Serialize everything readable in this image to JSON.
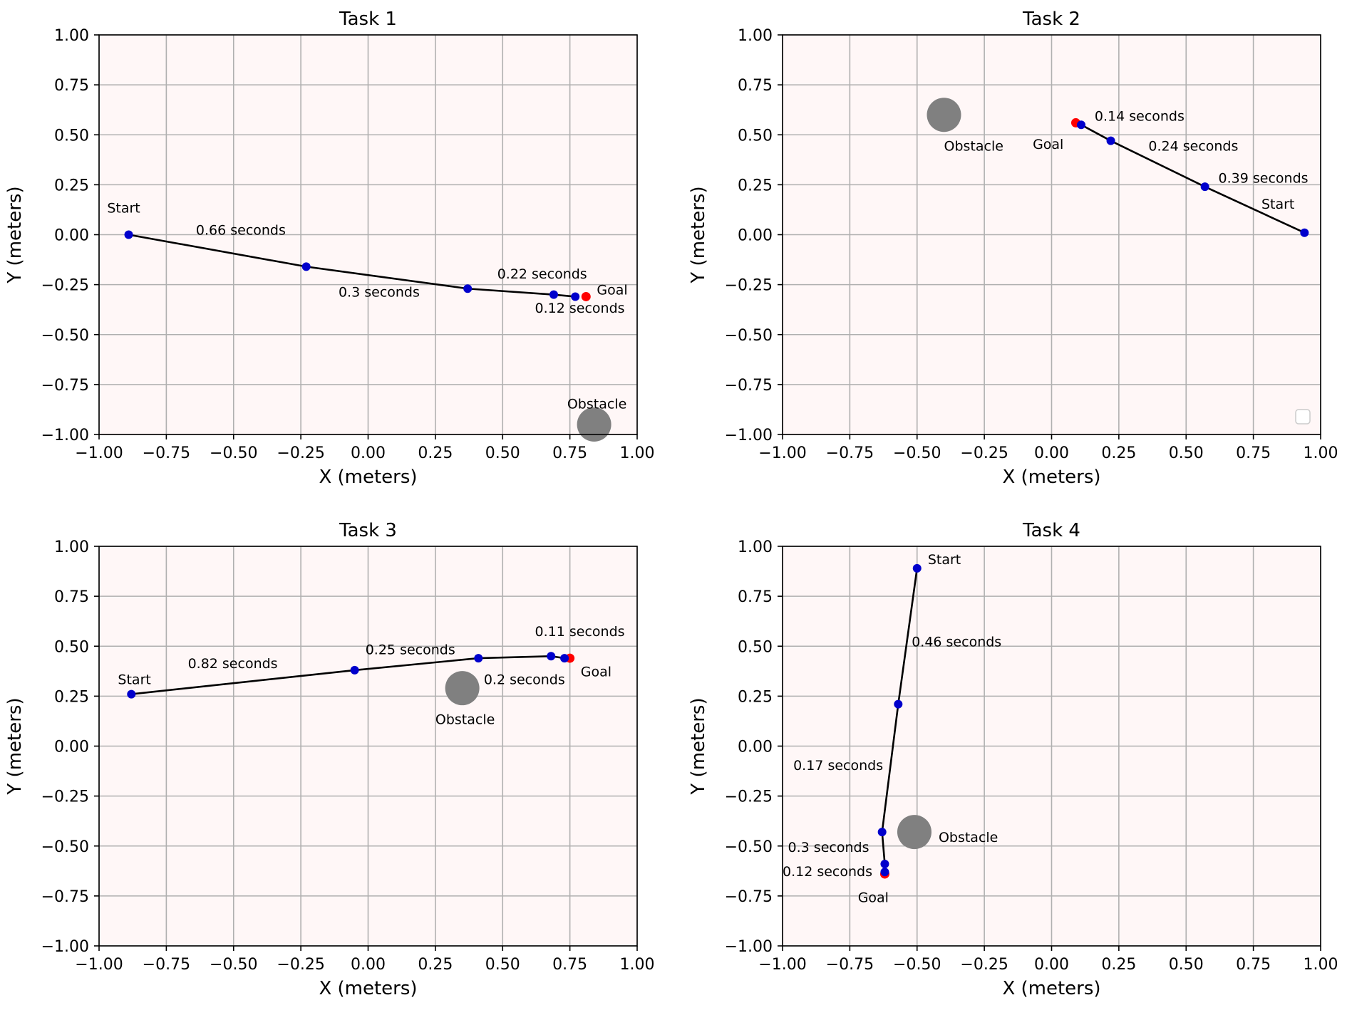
{
  "chart_data": [
    {
      "type": "scatter",
      "title": "Task 1",
      "xlabel": "X (meters)",
      "ylabel": "Y (meters)",
      "xlim": [
        -1.0,
        1.0
      ],
      "ylim": [
        -1.0,
        1.0
      ],
      "xticks": [
        "−1.00",
        "−0.75",
        "−0.50",
        "−0.25",
        "0.00",
        "0.25",
        "0.50",
        "0.75",
        "1.00"
      ],
      "yticks": [
        "−1.00",
        "−0.75",
        "−0.50",
        "−0.25",
        "0.00",
        "0.25",
        "0.50",
        "0.75",
        "1.00"
      ],
      "grid": true,
      "path": [
        [
          -0.89,
          0.0
        ],
        [
          -0.23,
          -0.16
        ],
        [
          0.37,
          -0.27
        ],
        [
          0.69,
          -0.3
        ],
        [
          0.77,
          -0.31
        ]
      ],
      "goal": [
        0.81,
        -0.31
      ],
      "obstacle": [
        0.84,
        -0.95
      ],
      "annotations": [
        {
          "text": "Start",
          "x": -0.97,
          "y": 0.11
        },
        {
          "text": "0.66 seconds",
          "x": -0.64,
          "y": 0.0
        },
        {
          "text": "0.3 seconds",
          "x": -0.11,
          "y": -0.31
        },
        {
          "text": "0.22 seconds",
          "x": 0.48,
          "y": -0.22
        },
        {
          "text": "Goal",
          "x": 0.85,
          "y": -0.3
        },
        {
          "text": "0.12 seconds",
          "x": 0.62,
          "y": -0.39
        },
        {
          "text": "Obstacle",
          "x": 0.74,
          "y": -0.87
        }
      ]
    },
    {
      "type": "scatter",
      "title": "Task 2",
      "xlabel": "X (meters)",
      "ylabel": "Y (meters)",
      "xlim": [
        -1.0,
        1.0
      ],
      "ylim": [
        -1.0,
        1.0
      ],
      "xticks": [
        "−1.00",
        "−0.75",
        "−0.50",
        "−0.25",
        "0.00",
        "0.25",
        "0.50",
        "0.75",
        "1.00"
      ],
      "yticks": [
        "−1.00",
        "−0.75",
        "−0.50",
        "−0.25",
        "0.00",
        "0.25",
        "0.50",
        "0.75",
        "1.00"
      ],
      "grid": true,
      "path": [
        [
          0.94,
          0.01
        ],
        [
          0.57,
          0.24
        ],
        [
          0.22,
          0.47
        ],
        [
          0.11,
          0.55
        ]
      ],
      "goal": [
        0.09,
        0.56
      ],
      "obstacle": [
        -0.4,
        0.6
      ],
      "legend_placement": "lower-right",
      "annotations": [
        {
          "text": "0.14 seconds",
          "x": 0.16,
          "y": 0.57
        },
        {
          "text": "Obstacle",
          "x": -0.4,
          "y": 0.42
        },
        {
          "text": "Goal",
          "x": -0.07,
          "y": 0.43
        },
        {
          "text": "0.24 seconds",
          "x": 0.36,
          "y": 0.42
        },
        {
          "text": "0.39 seconds",
          "x": 0.62,
          "y": 0.26
        },
        {
          "text": "Start",
          "x": 0.78,
          "y": 0.13
        }
      ]
    },
    {
      "type": "scatter",
      "title": "Task 3",
      "xlabel": "X (meters)",
      "ylabel": "Y (meters)",
      "xlim": [
        -1.0,
        1.0
      ],
      "ylim": [
        -1.0,
        1.0
      ],
      "xticks": [
        "−1.00",
        "−0.75",
        "−0.50",
        "−0.25",
        "0.00",
        "0.25",
        "0.50",
        "0.75",
        "1.00"
      ],
      "yticks": [
        "−1.00",
        "−0.75",
        "−0.50",
        "−0.25",
        "0.00",
        "0.25",
        "0.50",
        "0.75",
        "1.00"
      ],
      "grid": true,
      "path": [
        [
          -0.88,
          0.26
        ],
        [
          -0.05,
          0.38
        ],
        [
          0.41,
          0.44
        ],
        [
          0.68,
          0.45
        ],
        [
          0.73,
          0.44
        ]
      ],
      "goal": [
        0.75,
        0.44
      ],
      "obstacle": [
        0.35,
        0.29
      ],
      "annotations": [
        {
          "text": "Start",
          "x": -0.93,
          "y": 0.31
        },
        {
          "text": "0.82 seconds",
          "x": -0.67,
          "y": 0.39
        },
        {
          "text": "0.25 seconds",
          "x": -0.01,
          "y": 0.46
        },
        {
          "text": "0.11 seconds",
          "x": 0.62,
          "y": 0.55
        },
        {
          "text": "0.2 seconds",
          "x": 0.43,
          "y": 0.31
        },
        {
          "text": "Goal",
          "x": 0.79,
          "y": 0.35
        },
        {
          "text": "Obstacle",
          "x": 0.25,
          "y": 0.11
        }
      ]
    },
    {
      "type": "scatter",
      "title": "Task 4",
      "xlabel": "X (meters)",
      "ylabel": "Y (meters)",
      "xlim": [
        -1.0,
        1.0
      ],
      "ylim": [
        -1.0,
        1.0
      ],
      "xticks": [
        "−1.00",
        "−0.75",
        "−0.50",
        "−0.25",
        "0.00",
        "0.25",
        "0.50",
        "0.75",
        "1.00"
      ],
      "yticks": [
        "−1.00",
        "−0.75",
        "−0.50",
        "−0.25",
        "0.00",
        "0.25",
        "0.50",
        "0.75",
        "1.00"
      ],
      "grid": true,
      "path": [
        [
          -0.5,
          0.89
        ],
        [
          -0.57,
          0.21
        ],
        [
          -0.63,
          -0.43
        ],
        [
          -0.62,
          -0.59
        ],
        [
          -0.62,
          -0.63
        ]
      ],
      "goal": [
        -0.62,
        -0.64
      ],
      "obstacle": [
        -0.51,
        -0.43
      ],
      "annotations": [
        {
          "text": "Start",
          "x": -0.46,
          "y": 0.91
        },
        {
          "text": "0.46 seconds",
          "x": -0.52,
          "y": 0.5
        },
        {
          "text": "0.17 seconds",
          "x": -0.96,
          "y": -0.12
        },
        {
          "text": "Obstacle",
          "x": -0.42,
          "y": -0.48
        },
        {
          "text": "0.3 seconds",
          "x": -0.98,
          "y": -0.53
        },
        {
          "text": "0.12 seconds",
          "x": -1.0,
          "y": -0.65
        },
        {
          "text": "Goal",
          "x": -0.72,
          "y": -0.78
        }
      ]
    }
  ],
  "colors": {
    "plot_background": "#fff7f7",
    "grid": "#b0b0b0",
    "path_line": "#000000",
    "waypoint": "#0000cc",
    "goal": "#ff0000",
    "obstacle": "#808080"
  }
}
